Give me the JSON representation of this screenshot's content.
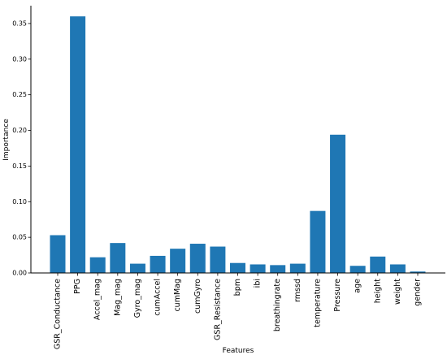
{
  "chart_data": {
    "type": "bar",
    "title": "",
    "xlabel": "Features",
    "ylabel": "Importance",
    "ylim": [
      0,
      0.375
    ],
    "yticks": [
      0.0,
      0.05,
      0.1,
      0.15,
      0.2,
      0.25,
      0.3,
      0.35
    ],
    "grid": false,
    "categories": [
      "GSR_Conductance",
      "PPG",
      "Accel_mag",
      "Mag_mag",
      "Gyro_mag",
      "cumAccel",
      "cumMag",
      "cumGyro",
      "GSR_Resistance",
      "bpm",
      "ibi",
      "breathingrate",
      "rmssd",
      "temperature",
      "Pressure",
      "age",
      "height",
      "weight",
      "gender"
    ],
    "values": [
      0.053,
      0.36,
      0.022,
      0.042,
      0.013,
      0.024,
      0.034,
      0.041,
      0.037,
      0.014,
      0.012,
      0.011,
      0.013,
      0.087,
      0.194,
      0.01,
      0.023,
      0.012,
      0.002
    ],
    "bar_color": "#1f77b4"
  }
}
